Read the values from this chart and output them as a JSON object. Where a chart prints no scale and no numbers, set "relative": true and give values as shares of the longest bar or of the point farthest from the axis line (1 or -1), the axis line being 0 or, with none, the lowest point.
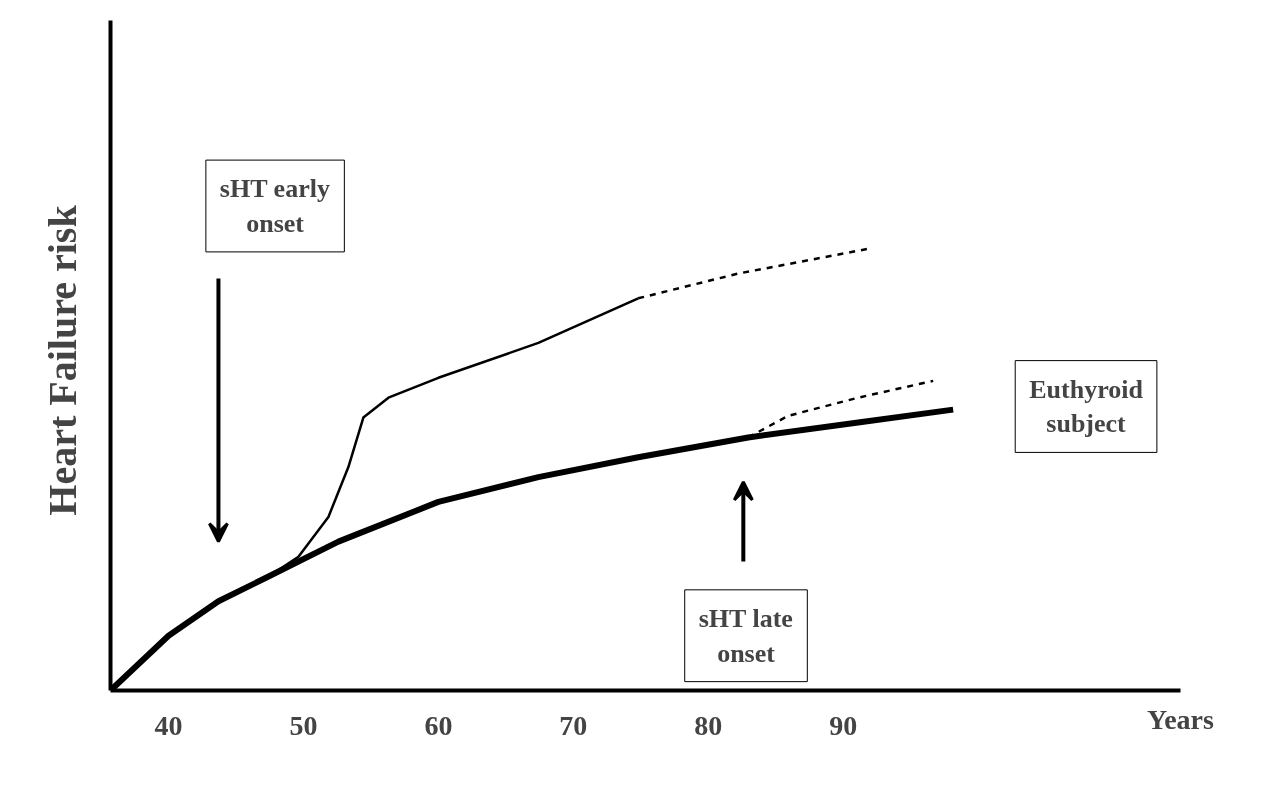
{
  "chart_data": {
    "type": "line",
    "relative": true,
    "ylabel": "Heart Failure  risk",
    "xlabel": "Years",
    "xlim": [
      35.7,
      115
    ],
    "xticks": [
      40,
      50,
      60,
      70,
      80,
      90
    ],
    "grid": false,
    "marker": "none",
    "series": [
      {
        "color": "#000000",
        "line_style": "solid",
        "x": [
          35.7,
          40,
          43.7,
          47.41,
          52.59,
          60,
          67.41,
          74.81,
          82.96,
          91.11,
          98.15
        ],
        "values": [
          0,
          0.124,
          0.202,
          0.258,
          0.337,
          0.427,
          0.483,
          0.528,
          0.573,
          0.607,
          0.636
        ]
      },
      {
        "color": "#000000",
        "line_style": "solid",
        "x": [
          47.41,
          49.63,
          51.85,
          53.33,
          54.44,
          56.3,
          60,
          67.41,
          74.81
        ],
        "values": [
          0.258,
          0.303,
          0.393,
          0.506,
          0.618,
          0.663,
          0.708,
          0.787,
          0.888
        ]
      },
      {
        "color": "#000000",
        "line_style": "dashed",
        "x": [
          74.81,
          82.22,
          91.85
        ],
        "values": [
          0.888,
          0.944,
          1
        ]
      },
      {
        "color": "#000000",
        "line_style": "dashed",
        "x": [
          82.96,
          85.93,
          91.11,
          96.67
        ],
        "values": [
          0.573,
          0.622,
          0.663,
          0.701
        ]
      }
    ],
    "annotations": [
      "sHT early onset",
      "sHT late onset",
      "Euthyroid subject"
    ]
  }
}
